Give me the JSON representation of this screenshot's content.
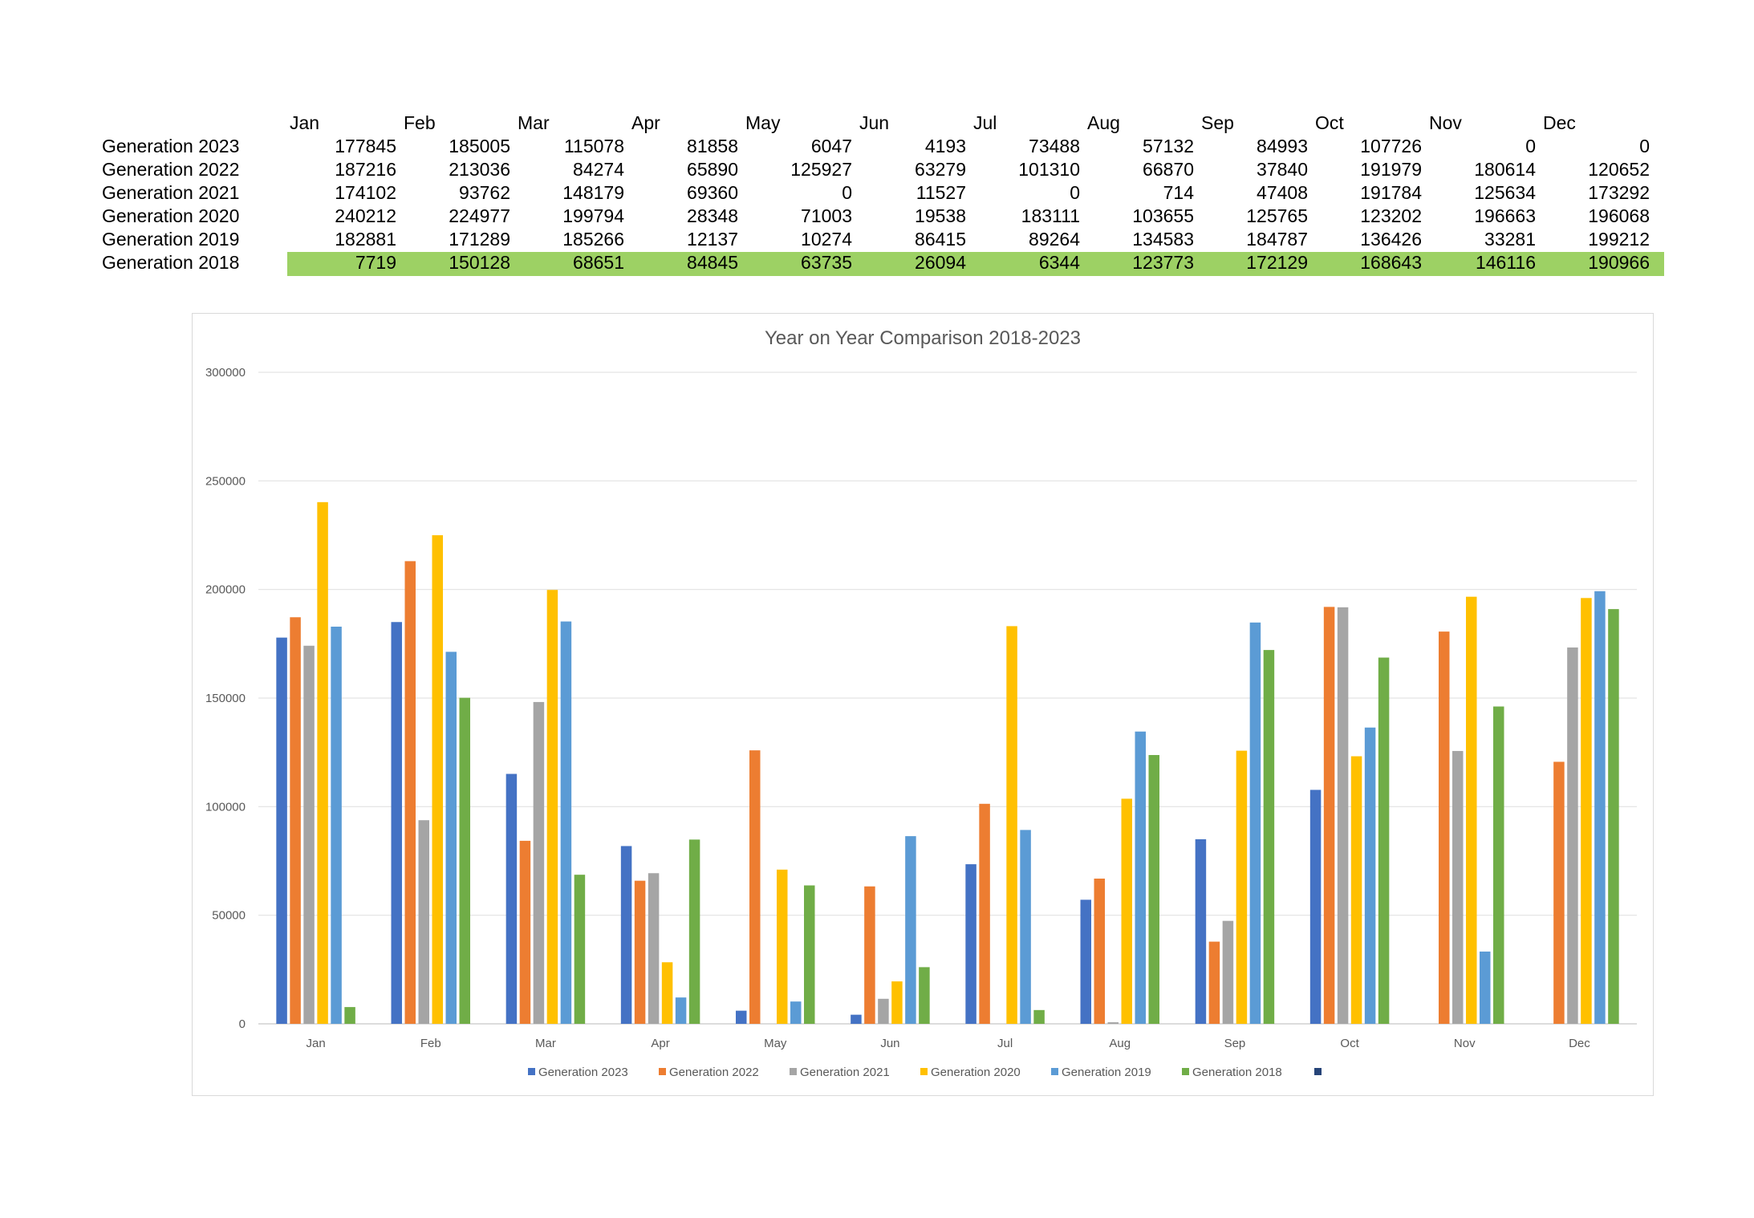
{
  "table": {
    "months": [
      "Jan",
      "Feb",
      "Mar",
      "Apr",
      "May",
      "Jun",
      "Jul",
      "Aug",
      "Sep",
      "Oct",
      "Nov",
      "Dec"
    ],
    "rows": [
      {
        "label": "Generation 2023",
        "values": [
          "177845",
          "185005",
          "115078",
          "81858",
          "6047",
          "4193",
          "73488",
          "57132",
          "84993",
          "107726",
          "0",
          "0"
        ]
      },
      {
        "label": "Generation 2022",
        "values": [
          "187216",
          "213036",
          "84274",
          "65890",
          "125927",
          "63279",
          "101310",
          "66870",
          "37840",
          "191979",
          "180614",
          "120652"
        ]
      },
      {
        "label": "Generation 2021",
        "values": [
          "174102",
          "93762",
          "148179",
          "69360",
          "0",
          "11527",
          "0",
          "714",
          "47408",
          "191784",
          "125634",
          "173292"
        ]
      },
      {
        "label": "Generation 2020",
        "values": [
          "240212",
          "224977",
          "199794",
          "28348",
          "71003",
          "19538",
          "183111",
          "103655",
          "125765",
          "123202",
          "196663",
          "196068"
        ]
      },
      {
        "label": "Generation 2019",
        "values": [
          "182881",
          "171289",
          "185266",
          "12137",
          "10274",
          "86415",
          "89264",
          "134583",
          "184787",
          "136426",
          "33281",
          "199212"
        ]
      },
      {
        "label": "Generation 2018",
        "values": [
          "7719",
          "150128",
          "68651",
          "84845",
          "63735",
          "26094",
          "6344",
          "123773",
          "172129",
          "168643",
          "146116",
          "190966"
        ]
      }
    ],
    "highlight_color": "#9dd164"
  },
  "chart_data": {
    "type": "bar",
    "title": "Year on Year Comparison 2018-2023",
    "xlabel": "",
    "ylabel": "",
    "categories": [
      "Jan",
      "Feb",
      "Mar",
      "Apr",
      "May",
      "Jun",
      "Jul",
      "Aug",
      "Sep",
      "Oct",
      "Nov",
      "Dec"
    ],
    "ylim": [
      0,
      300000
    ],
    "yticks": [
      0,
      50000,
      100000,
      150000,
      200000,
      250000,
      300000
    ],
    "ytick_labels": [
      "0",
      "50000",
      "100000",
      "150000",
      "200000",
      "250000",
      "300000"
    ],
    "grid": true,
    "legend_position": "bottom",
    "series": [
      {
        "name": "Generation 2023",
        "color": "#4472c4",
        "values": [
          177845,
          185005,
          115078,
          81858,
          6047,
          4193,
          73488,
          57132,
          84993,
          107726,
          0,
          0
        ]
      },
      {
        "name": "Generation 2022",
        "color": "#ed7d31",
        "values": [
          187216,
          213036,
          84274,
          65890,
          125927,
          63279,
          101310,
          66870,
          37840,
          191979,
          180614,
          120652
        ]
      },
      {
        "name": "Generation 2021",
        "color": "#a5a5a5",
        "values": [
          174102,
          93762,
          148179,
          69360,
          0,
          11527,
          0,
          714,
          47408,
          191784,
          125634,
          173292
        ]
      },
      {
        "name": "Generation 2020",
        "color": "#ffc000",
        "values": [
          240212,
          224977,
          199794,
          28348,
          71003,
          19538,
          183111,
          103655,
          125765,
          123202,
          196663,
          196068
        ]
      },
      {
        "name": "Generation 2019",
        "color": "#5b9bd5",
        "values": [
          182881,
          171289,
          185266,
          12137,
          10274,
          86415,
          89264,
          134583,
          184787,
          136426,
          33281,
          199212
        ]
      },
      {
        "name": "Generation 2018",
        "color": "#70ad47",
        "values": [
          7719,
          150128,
          68651,
          84845,
          63735,
          26094,
          6344,
          123773,
          172129,
          168643,
          146116,
          190966
        ]
      }
    ],
    "legend_extra_marker_color": "#264478"
  }
}
